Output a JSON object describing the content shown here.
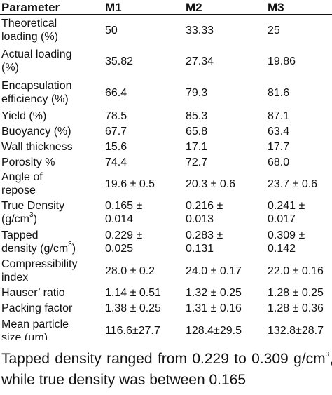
{
  "table": {
    "headers": [
      "Parameter",
      "M1",
      "M2",
      "M3"
    ],
    "rows": [
      {
        "param": [
          "Theoretical",
          "loading (%)"
        ],
        "m1": [
          "50"
        ],
        "m2": [
          "33.33"
        ],
        "m3": [
          "25"
        ]
      },
      {
        "param": [
          "Actual loading",
          "(%)"
        ],
        "m1": [
          "35.82"
        ],
        "m2": [
          "27.34"
        ],
        "m3": [
          "19.86"
        ]
      },
      {
        "param": [
          "Encapsulation",
          "efficiency (%)"
        ],
        "m1": [
          "66.4"
        ],
        "m2": [
          "79.3"
        ],
        "m3": [
          "81.6"
        ]
      },
      {
        "param": [
          "Yield (%)"
        ],
        "m1": [
          "78.5"
        ],
        "m2": [
          "85.3"
        ],
        "m3": [
          "87.1"
        ]
      },
      {
        "param": [
          "Buoyancy (%)"
        ],
        "m1": [
          "67.7"
        ],
        "m2": [
          "65.8"
        ],
        "m3": [
          "63.4"
        ]
      },
      {
        "param": [
          "Wall thickness"
        ],
        "m1": [
          "15.6"
        ],
        "m2": [
          "17.1"
        ],
        "m3": [
          "17.7"
        ]
      },
      {
        "param": [
          "Porosity %"
        ],
        "m1": [
          "74.4"
        ],
        "m2": [
          "72.7"
        ],
        "m3": [
          "68.0"
        ]
      },
      {
        "param": [
          "Angle of",
          "repose"
        ],
        "m1": [
          "19.6 ± 0.5"
        ],
        "m2": [
          "20.3 ± 0.6"
        ],
        "m3": [
          "23.7 ± 0.6"
        ]
      },
      {
        "param": [
          "True Density",
          "(g/cm3)"
        ],
        "m1": [
          "0.165 ±",
          "0.014"
        ],
        "m2": [
          "0.216 ±",
          "0.013"
        ],
        "m3": [
          "0.241 ±",
          "0.017"
        ]
      },
      {
        "param": [
          "Tapped",
          "density (g/cm3)"
        ],
        "m1": [
          "0.229 ±",
          "0.025"
        ],
        "m2": [
          "0.283 ±",
          "0.131"
        ],
        "m3": [
          "0.309 ±",
          "0.142"
        ]
      },
      {
        "param": [
          "Compressibility",
          "index"
        ],
        "m1": [
          "28.0 ± 0.2"
        ],
        "m2": [
          "24.0 ± 0.17"
        ],
        "m3": [
          "22.0 ± 0.16"
        ]
      },
      {
        "param": [
          "Hauser’ ratio"
        ],
        "m1": [
          "1.14 ± 0.51"
        ],
        "m2": [
          "1.32 ± 0.25"
        ],
        "m3": [
          "1.28 ± 0.25"
        ]
      },
      {
        "param": [
          "Packing factor"
        ],
        "m1": [
          "1.38 ± 0.25"
        ],
        "m2": [
          "1.31 ± 0.16"
        ],
        "m3": [
          "1.28 ± 0.36"
        ]
      },
      {
        "param": [
          "Mean particle",
          "size (µm)"
        ],
        "m1": [
          "116.6±27.7"
        ],
        "m2": [
          "128.4±29.5"
        ],
        "m3": [
          "132.8±28.7"
        ]
      }
    ]
  },
  "caption": {
    "text": "Tapped density ranged from 0.229 to 0.309 g/cm3, while true density was between 0.165"
  }
}
